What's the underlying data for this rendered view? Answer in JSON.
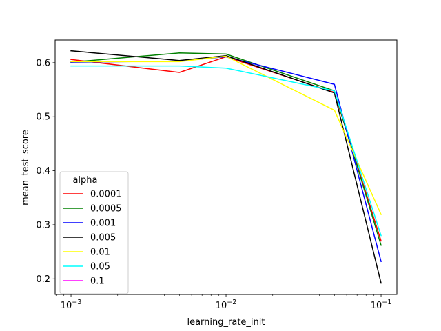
{
  "chart_data": {
    "type": "line",
    "xscale": "log",
    "xlabel": "learning_rate_init",
    "ylabel": "mean_test_score",
    "xlim": [
      0.00079,
      0.1265
    ],
    "ylim": [
      0.171,
      0.642
    ],
    "x": [
      0.001,
      0.005,
      0.01,
      0.05,
      0.1
    ],
    "x_ticks": [
      0.001,
      0.01,
      0.1
    ],
    "x_tick_labels": [
      {
        "base": "10",
        "exp": "−3"
      },
      {
        "base": "10",
        "exp": "−2"
      },
      {
        "base": "10",
        "exp": "−1"
      }
    ],
    "y_ticks": [
      0.2,
      0.3,
      0.4,
      0.5,
      0.6
    ],
    "y_tick_labels": [
      "0.2",
      "0.3",
      "0.4",
      "0.5",
      "0.6"
    ],
    "grid": false,
    "legend": {
      "title": "alpha",
      "placement": "lower-left"
    },
    "series": [
      {
        "name": "0.0001",
        "color": "#ff0000",
        "values": [
          0.606,
          0.582,
          0.611,
          0.545,
          0.27
        ]
      },
      {
        "name": "0.0005",
        "color": "#008000",
        "values": [
          0.601,
          0.618,
          0.616,
          0.548,
          0.262
        ]
      },
      {
        "name": "0.001",
        "color": "#0000ff",
        "values": [
          0.601,
          0.603,
          0.611,
          0.56,
          0.232
        ]
      },
      {
        "name": "0.005",
        "color": "#000000",
        "values": [
          0.622,
          0.604,
          0.613,
          0.544,
          0.192
        ]
      },
      {
        "name": "0.01",
        "color": "#ffff00",
        "values": [
          0.602,
          0.602,
          0.612,
          0.512,
          0.319
        ]
      },
      {
        "name": "0.05",
        "color": "#00ffff",
        "values": [
          0.594,
          0.594,
          0.59,
          0.548,
          0.28
        ]
      },
      {
        "name": "0.1",
        "color": "#ff00ff",
        "values": [
          null,
          null,
          null,
          null,
          null
        ]
      }
    ]
  }
}
